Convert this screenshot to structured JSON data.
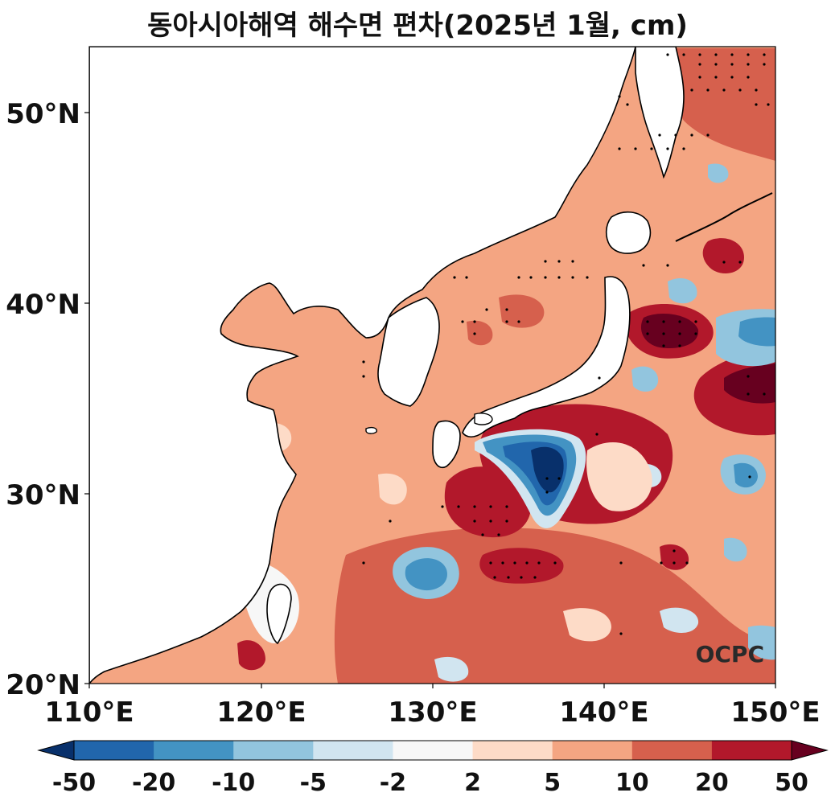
{
  "title": "동아시아해역 해수면 편차(2025년 1월, cm)",
  "watermark": "OCPC",
  "lat_ticks": [
    "50°N",
    "40°N",
    "30°N",
    "20°N"
  ],
  "lon_ticks": [
    "110°E",
    "120°E",
    "130°E",
    "140°E",
    "150°E"
  ],
  "colorbar": {
    "labels": [
      "-50",
      "-20",
      "-10",
      "-5",
      "-2",
      "2",
      "5",
      "10",
      "20",
      "50"
    ],
    "colors": [
      "#08306b",
      "#2166ac",
      "#4393c3",
      "#92c5de",
      "#d1e5f0",
      "#f7f7f7",
      "#fddbc7",
      "#f4a582",
      "#d6604d",
      "#b2182b",
      "#67001f"
    ]
  }
}
